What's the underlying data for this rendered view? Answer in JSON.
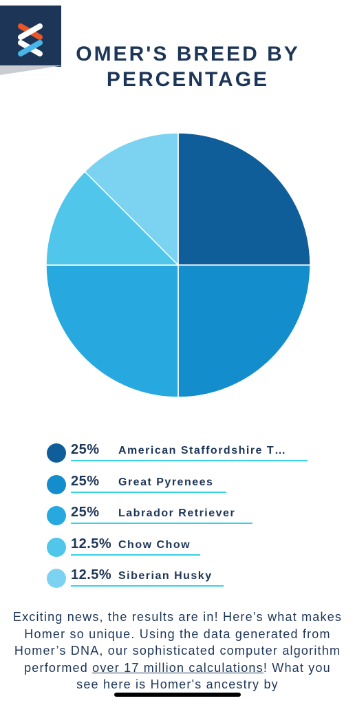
{
  "header": {
    "title": "OMER'S BREED BY PERCENTAGE",
    "logo": "embark-x-logo"
  },
  "chart_data": {
    "type": "pie",
    "title": "OMER'S BREED BY PERCENTAGE",
    "legend_position": "bottom",
    "slices": [
      {
        "label": "American Staffordshire T…",
        "value": 25,
        "display": "25%",
        "color": "#0f5e9a"
      },
      {
        "label": "Great Pyrenees",
        "value": 25,
        "display": "25%",
        "color": "#138dcb"
      },
      {
        "label": "Labrador Retriever",
        "value": 25,
        "display": "25%",
        "color": "#27a8de"
      },
      {
        "label": "Chow Chow",
        "value": 12.5,
        "display": "12.5%",
        "color": "#4fc6ea"
      },
      {
        "label": "Siberian Husky",
        "value": 12.5,
        "display": "12.5%",
        "color": "#7bd3f1"
      }
    ]
  },
  "body": {
    "text_before": "Exciting news, the results are in! Here’s what makes Homer so unique. Using the data generated from Homer’s DNA, our sophisticated computer algorithm performed ",
    "text_underlined": "over 17 million calculations",
    "text_after": "! What you see here is Homer's ancestry by"
  },
  "accent_colors": {
    "navy": "#1d3557",
    "underline": "#35d2e8"
  }
}
